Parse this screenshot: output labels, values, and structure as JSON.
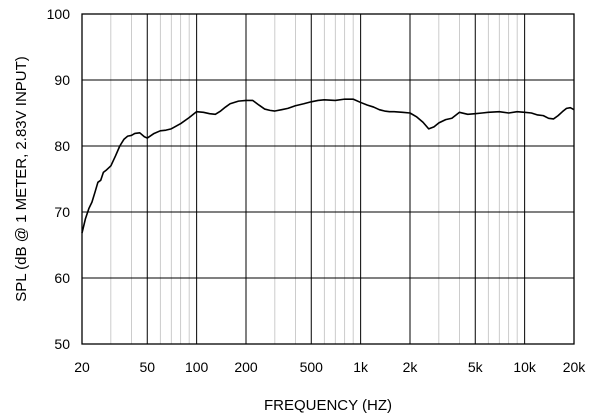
{
  "chart_data": {
    "type": "line",
    "xlabel": "FREQUENCY (HZ)",
    "ylabel": "SPL (dB @ 1 METER, 2.83V INPUT)",
    "x_scale": "log",
    "xlim": [
      20,
      20000
    ],
    "ylim": [
      50,
      100
    ],
    "grid": true,
    "x_ticks": [
      {
        "value": 20,
        "label": "20"
      },
      {
        "value": 50,
        "label": "50"
      },
      {
        "value": 100,
        "label": "100"
      },
      {
        "value": 200,
        "label": "200"
      },
      {
        "value": 500,
        "label": "500"
      },
      {
        "value": 1000,
        "label": "1k"
      },
      {
        "value": 2000,
        "label": "2k"
      },
      {
        "value": 5000,
        "label": "5k"
      },
      {
        "value": 10000,
        "label": "10k"
      },
      {
        "value": 20000,
        "label": "20k"
      }
    ],
    "y_ticks": [
      {
        "value": 50,
        "label": "50"
      },
      {
        "value": 60,
        "label": "60"
      },
      {
        "value": 70,
        "label": "70"
      },
      {
        "value": 80,
        "label": "80"
      },
      {
        "value": 90,
        "label": "90"
      },
      {
        "value": 100,
        "label": "100"
      }
    ],
    "series": [
      {
        "color": "#000000",
        "points": [
          [
            20,
            66.8
          ],
          [
            21,
            69
          ],
          [
            22,
            70.5
          ],
          [
            23,
            71.5
          ],
          [
            24,
            73
          ],
          [
            25,
            74.5
          ],
          [
            26,
            74.8
          ],
          [
            27,
            76
          ],
          [
            28,
            76.3
          ],
          [
            30,
            77
          ],
          [
            32,
            78.5
          ],
          [
            34,
            80
          ],
          [
            36,
            81
          ],
          [
            38,
            81.5
          ],
          [
            40,
            81.6
          ],
          [
            42,
            81.9
          ],
          [
            45,
            82
          ],
          [
            48,
            81.4
          ],
          [
            50,
            81.2
          ],
          [
            55,
            81.9
          ],
          [
            60,
            82.3
          ],
          [
            65,
            82.4
          ],
          [
            70,
            82.6
          ],
          [
            80,
            83.4
          ],
          [
            90,
            84.3
          ],
          [
            100,
            85.2
          ],
          [
            110,
            85.1
          ],
          [
            120,
            84.9
          ],
          [
            130,
            84.8
          ],
          [
            140,
            85.3
          ],
          [
            150,
            85.9
          ],
          [
            160,
            86.4
          ],
          [
            180,
            86.8
          ],
          [
            200,
            86.9
          ],
          [
            220,
            86.9
          ],
          [
            240,
            86.2
          ],
          [
            260,
            85.6
          ],
          [
            280,
            85.4
          ],
          [
            300,
            85.3
          ],
          [
            330,
            85.5
          ],
          [
            360,
            85.7
          ],
          [
            400,
            86.1
          ],
          [
            450,
            86.4
          ],
          [
            500,
            86.7
          ],
          [
            550,
            86.9
          ],
          [
            600,
            87
          ],
          [
            700,
            86.9
          ],
          [
            800,
            87.1
          ],
          [
            900,
            87.1
          ],
          [
            1000,
            86.6
          ],
          [
            1100,
            86.2
          ],
          [
            1200,
            85.9
          ],
          [
            1300,
            85.5
          ],
          [
            1400,
            85.3
          ],
          [
            1500,
            85.2
          ],
          [
            1600,
            85.2
          ],
          [
            1800,
            85.1
          ],
          [
            2000,
            85
          ],
          [
            2200,
            84.4
          ],
          [
            2400,
            83.6
          ],
          [
            2600,
            82.6
          ],
          [
            2800,
            82.9
          ],
          [
            3000,
            83.5
          ],
          [
            3300,
            84
          ],
          [
            3600,
            84.2
          ],
          [
            4000,
            85.1
          ],
          [
            4500,
            84.8
          ],
          [
            5000,
            84.9
          ],
          [
            5500,
            85
          ],
          [
            6000,
            85.1
          ],
          [
            7000,
            85.2
          ],
          [
            8000,
            85
          ],
          [
            9000,
            85.2
          ],
          [
            10000,
            85.1
          ],
          [
            11000,
            85
          ],
          [
            12000,
            84.7
          ],
          [
            13000,
            84.6
          ],
          [
            14000,
            84.2
          ],
          [
            15000,
            84.1
          ],
          [
            16000,
            84.6
          ],
          [
            17000,
            85.2
          ],
          [
            18000,
            85.7
          ],
          [
            19000,
            85.8
          ],
          [
            20000,
            85.5
          ]
        ]
      }
    ]
  }
}
